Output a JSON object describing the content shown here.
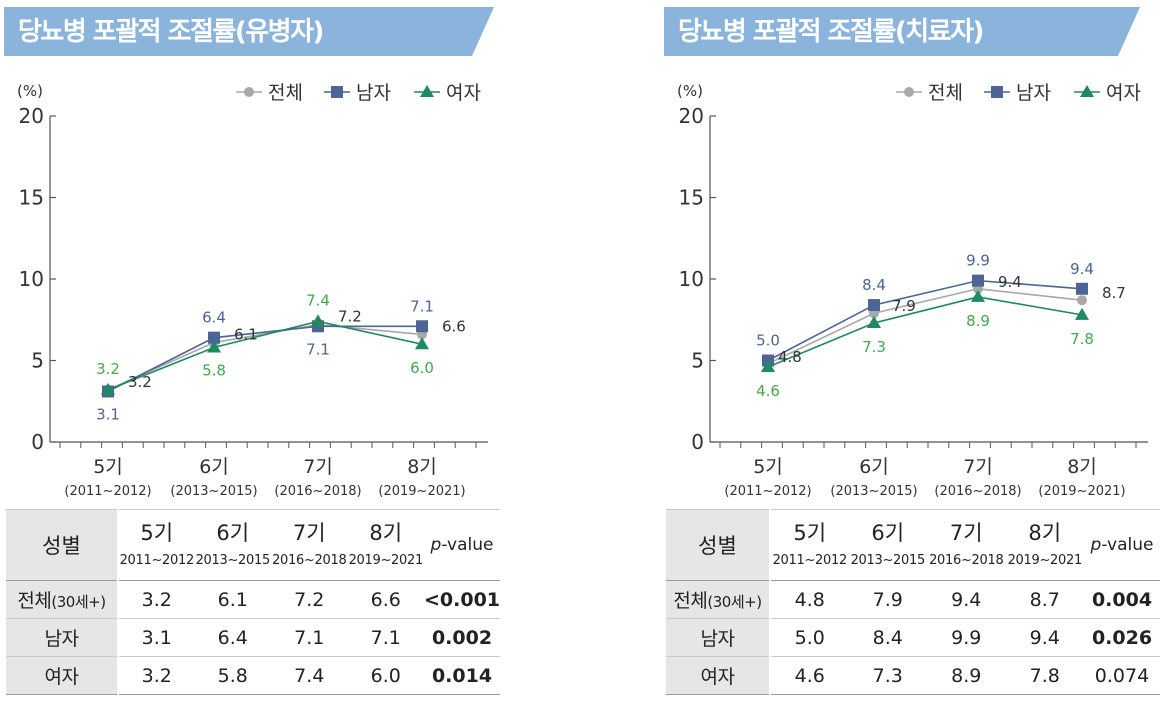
{
  "charts": [
    {
      "id": "uncontrolled",
      "banner": "당뇨병 포괄적 조절률(유병자)",
      "table": {
        "header_label": "성별",
        "pvalue_label": "-value",
        "pvalue_italic": "p",
        "rows": [
          {
            "label": "전체",
            "label_small": "(30세+)",
            "values": [
              "3.2",
              "6.1",
              "7.2",
              "6.6"
            ],
            "pvalue": "<0.001",
            "significant": true
          },
          {
            "label": "남자",
            "label_small": "",
            "values": [
              "3.1",
              "6.4",
              "7.1",
              "7.1"
            ],
            "pvalue": "0.002",
            "significant": true
          },
          {
            "label": "여자",
            "label_small": "",
            "values": [
              "3.2",
              "5.8",
              "7.4",
              "6.0"
            ],
            "pvalue": "0.014",
            "significant": true
          }
        ]
      }
    },
    {
      "id": "treated",
      "banner": "당뇨병 포괄적 조절률(치료자)",
      "table": {
        "header_label": "성별",
        "pvalue_label": "-value",
        "pvalue_italic": "p",
        "rows": [
          {
            "label": "전체",
            "label_small": "(30세+)",
            "values": [
              "4.8",
              "7.9",
              "9.4",
              "8.7"
            ],
            "pvalue": "0.004",
            "significant": true
          },
          {
            "label": "남자",
            "label_small": "",
            "values": [
              "5.0",
              "8.4",
              "9.9",
              "9.4"
            ],
            "pvalue": "0.026",
            "significant": true
          },
          {
            "label": "여자",
            "label_small": "",
            "values": [
              "4.6",
              "7.3",
              "8.9",
              "7.8"
            ],
            "pvalue": "0.074",
            "significant": false
          }
        ]
      }
    }
  ],
  "chart_data": [
    {
      "type": "line",
      "title": "당뇨병 포괄적 조절률(유병자)",
      "ylabel": "(%)",
      "ylim": [
        0,
        20
      ],
      "yticks": [
        "0",
        "5",
        "10",
        "15",
        "20"
      ],
      "categories": [
        "5기",
        "6기",
        "7기",
        "8기"
      ],
      "category_periods": [
        "(2011~2012)",
        "(2013~2015)",
        "(2016~2018)",
        "(2019~2021)"
      ],
      "legend_position": "top-right",
      "grid": false,
      "series": [
        {
          "name": "전체",
          "marker": "circle",
          "color": "#a8a8a8",
          "label_color": "#333333",
          "values": [
            3.2,
            6.1,
            7.2,
            6.6
          ],
          "labels": [
            "3.2",
            "6.1",
            "7.2",
            "6.6"
          ]
        },
        {
          "name": "남자",
          "marker": "square",
          "color": "#4a6596",
          "label_color": "#4a6596",
          "values": [
            3.1,
            6.4,
            7.1,
            7.1
          ],
          "labels": [
            "3.1",
            "6.4",
            "7.1",
            "7.1"
          ]
        },
        {
          "name": "여자",
          "marker": "triangle",
          "color": "#1e8a5e",
          "label_color": "#43a84d",
          "values": [
            3.2,
            5.8,
            7.4,
            6.0
          ],
          "labels": [
            "3.2",
            "5.8",
            "7.4",
            "6.0"
          ]
        }
      ]
    },
    {
      "type": "line",
      "title": "당뇨병 포괄적 조절률(치료자)",
      "ylabel": "(%)",
      "ylim": [
        0,
        20
      ],
      "yticks": [
        "0",
        "5",
        "10",
        "15",
        "20"
      ],
      "categories": [
        "5기",
        "6기",
        "7기",
        "8기"
      ],
      "category_periods": [
        "(2011~2012)",
        "(2013~2015)",
        "(2016~2018)",
        "(2019~2021)"
      ],
      "legend_position": "top-right",
      "grid": false,
      "series": [
        {
          "name": "전체",
          "marker": "circle",
          "color": "#a8a8a8",
          "label_color": "#333333",
          "values": [
            4.8,
            7.9,
            9.4,
            8.7
          ],
          "labels": [
            "4.8",
            "7.9",
            "9.4",
            "8.7"
          ]
        },
        {
          "name": "남자",
          "marker": "square",
          "color": "#4a6596",
          "label_color": "#4a6596",
          "values": [
            5.0,
            8.4,
            9.9,
            9.4
          ],
          "labels": [
            "5.0",
            "8.4",
            "9.9",
            "9.4"
          ]
        },
        {
          "name": "여자",
          "marker": "triangle",
          "color": "#1e8a5e",
          "label_color": "#43a84d",
          "values": [
            4.6,
            7.3,
            8.9,
            7.8
          ],
          "labels": [
            "4.6",
            "7.3",
            "8.9",
            "7.8"
          ]
        }
      ]
    }
  ],
  "colors": {
    "banner": "#8bb4dd",
    "axis": "#555555",
    "table_label_bg": "#e6e6e6"
  }
}
